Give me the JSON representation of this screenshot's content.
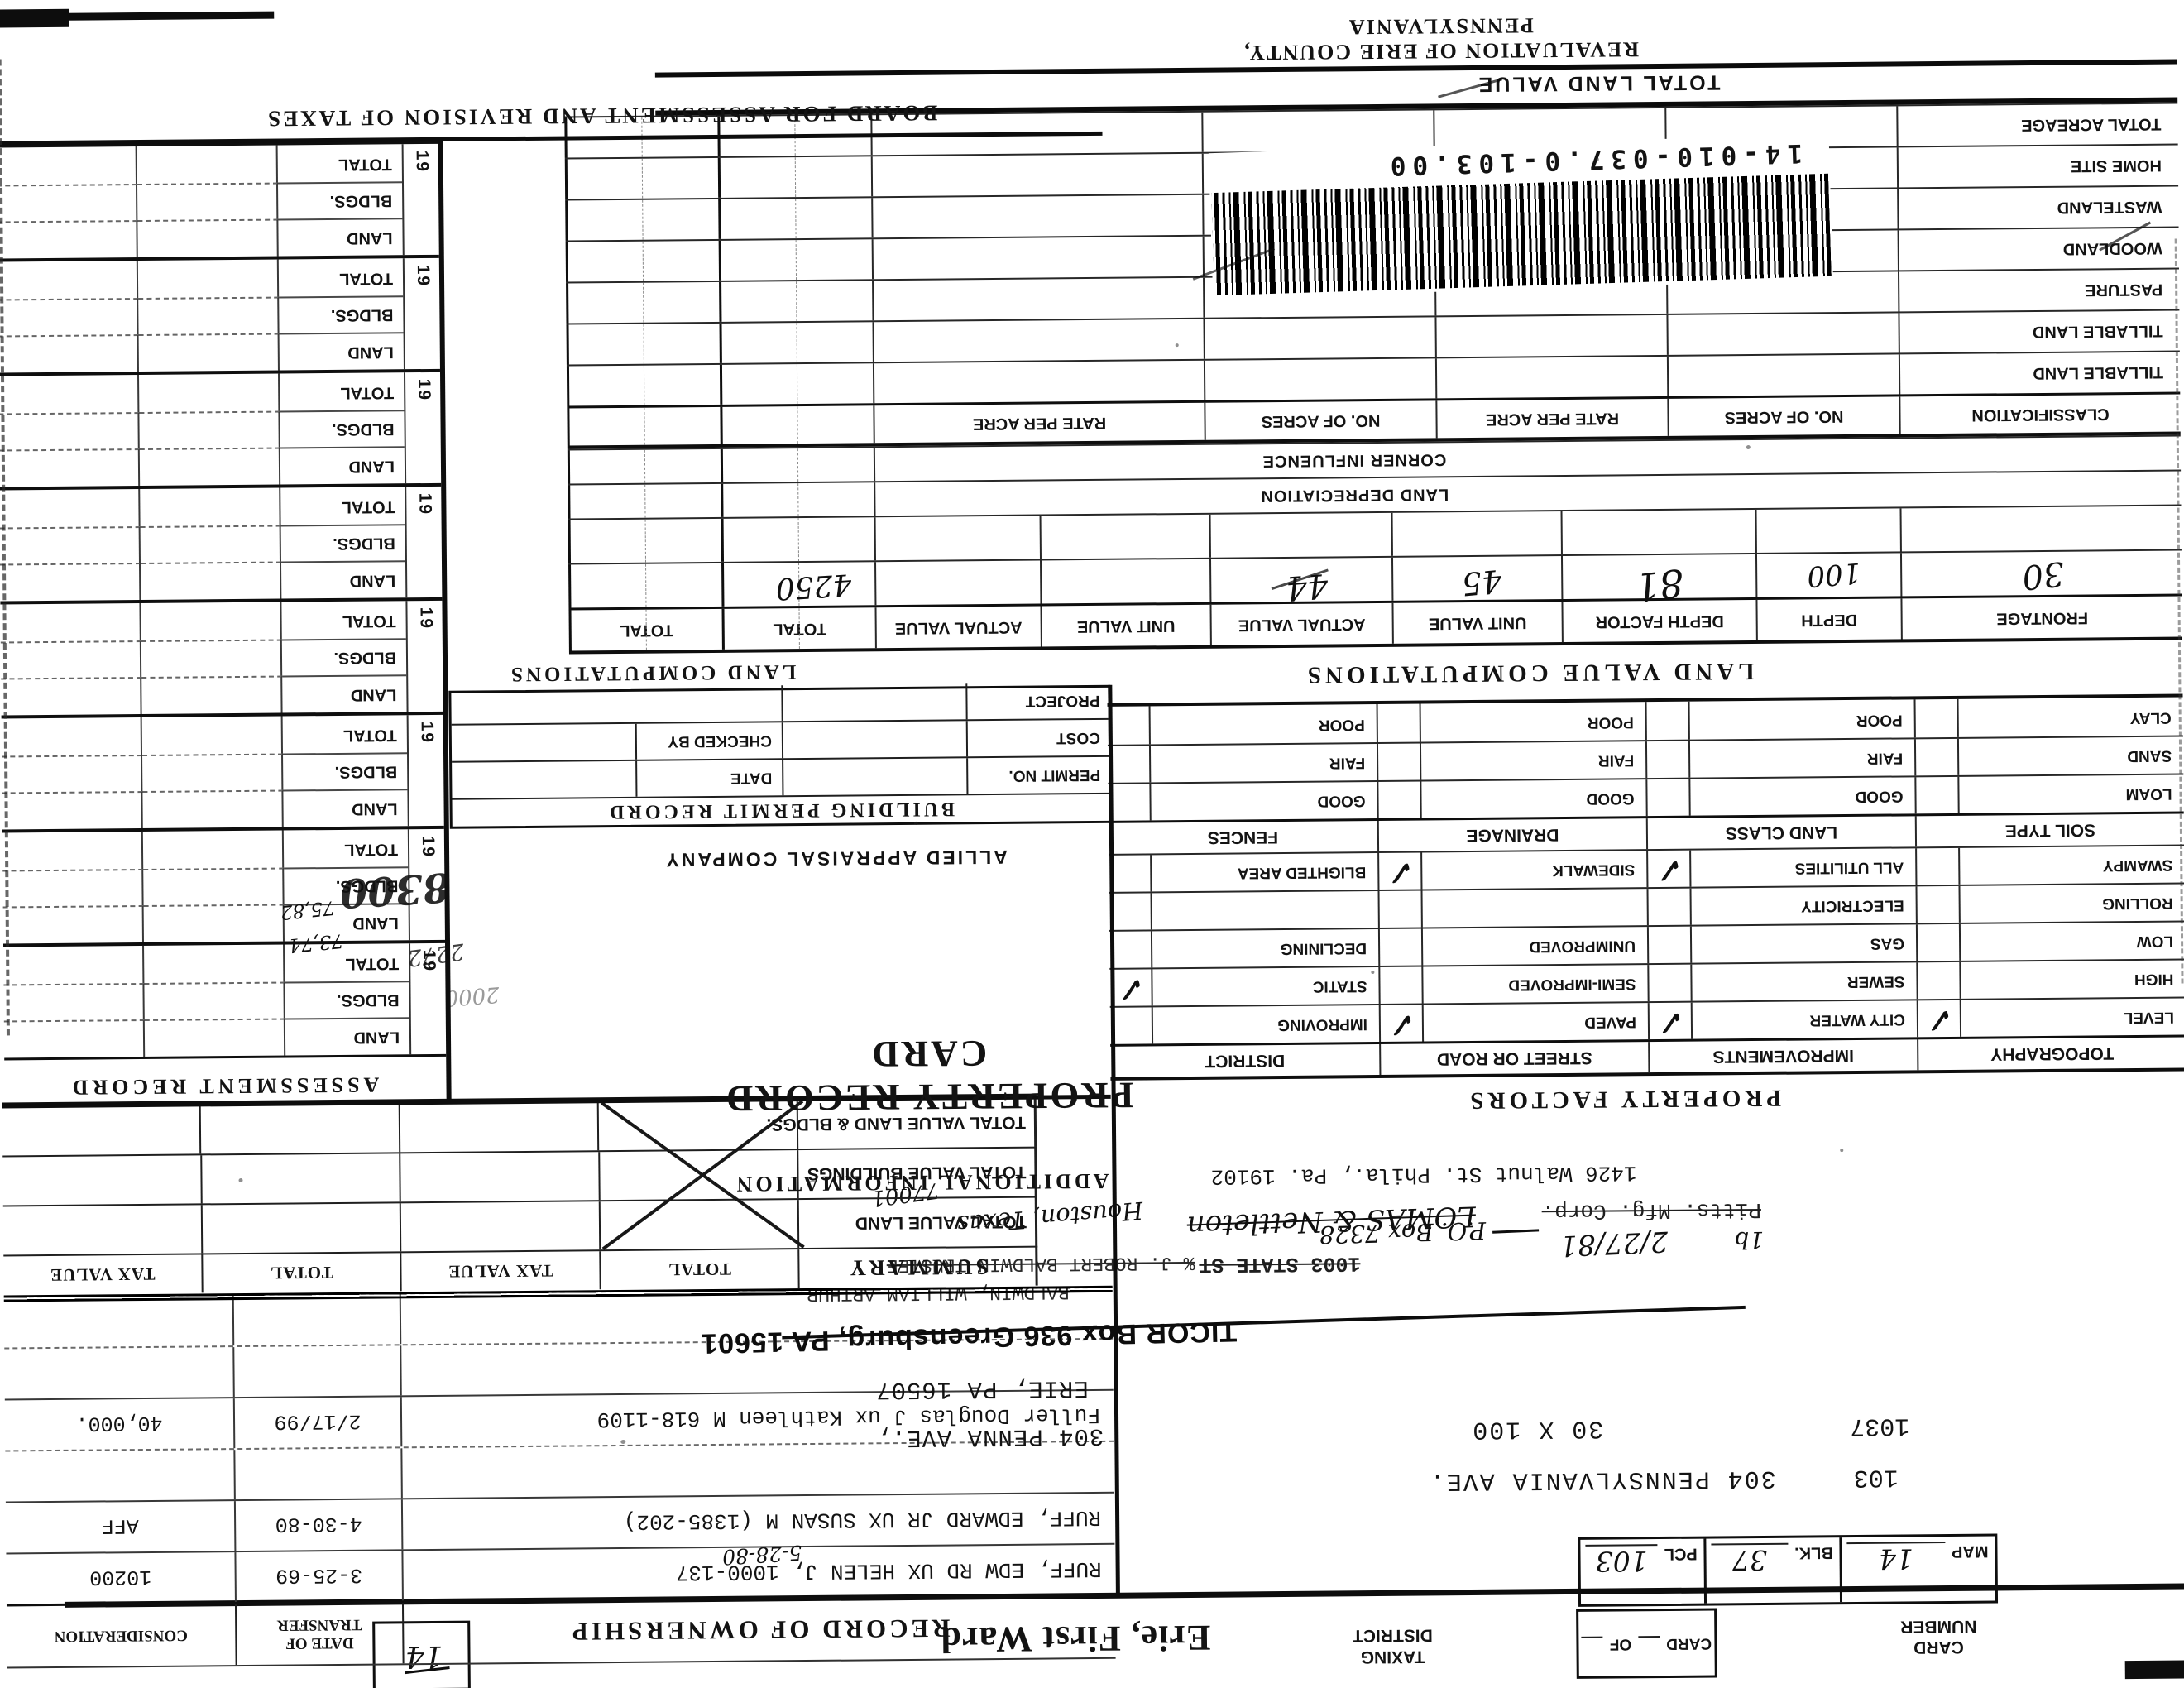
{
  "header": {
    "card_number_line1": "CARD",
    "card_number_line2": "NUMBER",
    "card_of": {
      "card": "CARD",
      "of": "OF"
    },
    "map": {
      "label": "MAP",
      "value": "14"
    },
    "blk": {
      "label": "BLK.",
      "value": "37"
    },
    "pcl": {
      "label": "PCL",
      "value": "103"
    },
    "taxing_line1": "TAXING",
    "taxing_line2": "DISTRICT",
    "ward": "Erie, First Ward",
    "corner_box_value": "14"
  },
  "ownership": {
    "title": "RECORD OF OWNERSHIP",
    "date_header_line1": "DATE OF",
    "date_header_line2": "TRANSFER",
    "consideration_header": "CONSIDERATION",
    "rows": [
      {
        "name": "RUFF, EDW RD UX HELEN J, 1000-137",
        "date": "3-25-69",
        "consideration": "10200",
        "hand": ""
      },
      {
        "name": "RUFF, EDWARD JR UX SUSAN M (1385-202)",
        "date": "4-30-80",
        "consideration": "AFF",
        "hand": "5-28-80"
      },
      {
        "name": "",
        "date": "",
        "consideration": "",
        "hand": ""
      },
      {
        "name": "Fuller Douglas J ux Kathleen M  618-1109",
        "date": "2/17/99",
        "consideration": "40,000.",
        "hand": ""
      },
      {
        "name": "",
        "date": "",
        "consideration": "",
        "hand": ""
      },
      {
        "name": "",
        "date": "",
        "consideration": "",
        "hand": ""
      }
    ]
  },
  "addresses": {
    "a1_num": "103",
    "a1_street": "304 PENNSYLVANIA AVE.",
    "a2_num": "1037",
    "a2_dim": "30 X 100",
    "a2_street": "304 PENNA AVE.,",
    "a3_city": "ERIE, PA  16507"
  },
  "stamps": {
    "ticor": "TICOR Box 936 Greensburg, PA 15601",
    "baldwin": "BALDWIN, WILLIAM ARTHUR",
    "trustee": "% J. ROBERT BALDWIN   TRUSTEE",
    "state_st": "1003 STATE ST",
    "pitts": "Pitts. Mfg. Corp.",
    "walnut": "1426 Walnut St. Phila., Pa. 19102",
    "hand_1b": "1b",
    "hand_date": "2/27/81",
    "hand_po": "P.O. Box 7328",
    "hand_lomas": "LOMAS & Nettleton",
    "hand_houston": "Houston, Texas",
    "hand_zip": "77001"
  },
  "summary": {
    "title": "SUMMARY",
    "col_headers": [
      "TOTAL",
      "TAX VALUE",
      "TOTAL",
      "TAX VALUE"
    ],
    "rows": [
      "TOTAL VALUE LAND",
      "TOTAL VALUE BUILDINGS",
      "TOTAL VALUE LAND & BLDGS."
    ]
  },
  "titles": {
    "property_record_card": "PROPERTY RECORD CARD",
    "additional_information": "ADDITIONAL INFORMATION",
    "assessment_record": "ASSESSMENT RECORD",
    "property_factors": "PROPERTY FACTORS",
    "land_value_computations": "LAND VALUE COMPUTATIONS",
    "land_computations": "LAND COMPUTATIONS",
    "building_permit_record": "BUILDING PERMIT RECORD",
    "allied": "ALLIED APPRAISAL COMPANY",
    "total_land_value": "TOTAL LAND VALUE",
    "board": "BOARD FOR ASSESSMENT AND REVISION OF TAXES",
    "revaluation": "REVALUATION OF ERIE COUNTY, PENNSYLVANIA"
  },
  "factors": {
    "check_glyph": "✓",
    "band1_headers": [
      "TOPOGRAPHY",
      "IMPROVEMENTS",
      "STREET OR ROAD",
      "DISTRICT"
    ],
    "band1_rows": [
      [
        {
          "label": "LEVEL",
          "check": true
        },
        {
          "label": "CITY WATER",
          "check": true
        },
        {
          "label": "PAVED",
          "check": true
        },
        {
          "label": "IMPROVING",
          "check": false
        }
      ],
      [
        {
          "label": "HIGH",
          "check": false
        },
        {
          "label": "SEWER",
          "check": false
        },
        {
          "label": "SEMI-IMPROVED",
          "check": false
        },
        {
          "label": "STATIC",
          "check": true
        }
      ],
      [
        {
          "label": "LOW",
          "check": false
        },
        {
          "label": "GAS",
          "check": false
        },
        {
          "label": "UNIMPROVED",
          "check": false
        },
        {
          "label": "DECLINING",
          "check": false
        }
      ],
      [
        {
          "label": "ROLLING",
          "check": false
        },
        {
          "label": "ELECTRICITY",
          "check": false
        },
        {
          "label": "",
          "check": false
        },
        {
          "label": "",
          "check": false
        }
      ],
      [
        {
          "label": "SWAMPY",
          "check": false
        },
        {
          "label": "ALL UTILITIES",
          "check": true
        },
        {
          "label": "SIDEWALK",
          "check": true
        },
        {
          "label": "BLIGHTED AREA",
          "check": false
        }
      ]
    ],
    "band2_headers": [
      "SOIL TYPE",
      "LAND CLASS",
      "DRAINAGE",
      "FENCES"
    ],
    "band2_rows": [
      [
        {
          "label": "LOAM",
          "check": false
        },
        {
          "label": "GOOD",
          "check": false
        },
        {
          "label": "GOOD",
          "check": false
        },
        {
          "label": "GOOD",
          "check": false
        }
      ],
      [
        {
          "label": "SAND",
          "check": false
        },
        {
          "label": "FAIR",
          "check": false
        },
        {
          "label": "FAIR",
          "check": false
        },
        {
          "label": "FAIR",
          "check": false
        }
      ],
      [
        {
          "label": "CLAY",
          "check": false
        },
        {
          "label": "POOR",
          "check": false
        },
        {
          "label": "POOR",
          "check": false
        },
        {
          "label": "POOR",
          "check": false
        }
      ]
    ]
  },
  "permit": {
    "permit_no": "PERMIT NO.",
    "cost": "COST",
    "project": "PROJECT",
    "date": "DATE",
    "checked_by": "CHECKED BY"
  },
  "land_table": {
    "headers": [
      "FRONTAGE",
      "DEPTH",
      "DEPTH FACTOR",
      "UNIT VALUE",
      "ACTUAL VALUE",
      "UNIT VALUE",
      "ACTUAL VALUE"
    ],
    "total_headers": [
      "TOTAL",
      "TOTAL"
    ],
    "hand": {
      "frontage": "30",
      "depth": "100",
      "depth_factor": "81",
      "unit_value": "45",
      "actual_value": "44",
      "total": "4250"
    },
    "row_labels": [
      "LAND DEPRECIATION",
      "CORNER INFLUENCE"
    ],
    "class_headers": [
      "CLASSIFICATION",
      "NO. OF ACRES",
      "RATE PER ACRE",
      "NO. OF ACRES",
      "RATE PER ACRE"
    ],
    "class_rows": [
      "TILLABLE LAND",
      "TILLABLE LAND",
      "PASTURE",
      "WOODLAND",
      "WASTELAND",
      "HOME SITE",
      "TOTAL ACREAGE"
    ]
  },
  "barcode": {
    "number": "14-010-037.0-103.00"
  },
  "assessment": {
    "year_prefix": "19",
    "row_labels": [
      "LAND",
      "BLDGS.",
      "TOTAL"
    ],
    "group_count": 8,
    "hand": {
      "scribble": "2000",
      "num2272": "2272",
      "years_a": "73,74",
      "years_b": "75,82",
      "value": "8300"
    }
  }
}
